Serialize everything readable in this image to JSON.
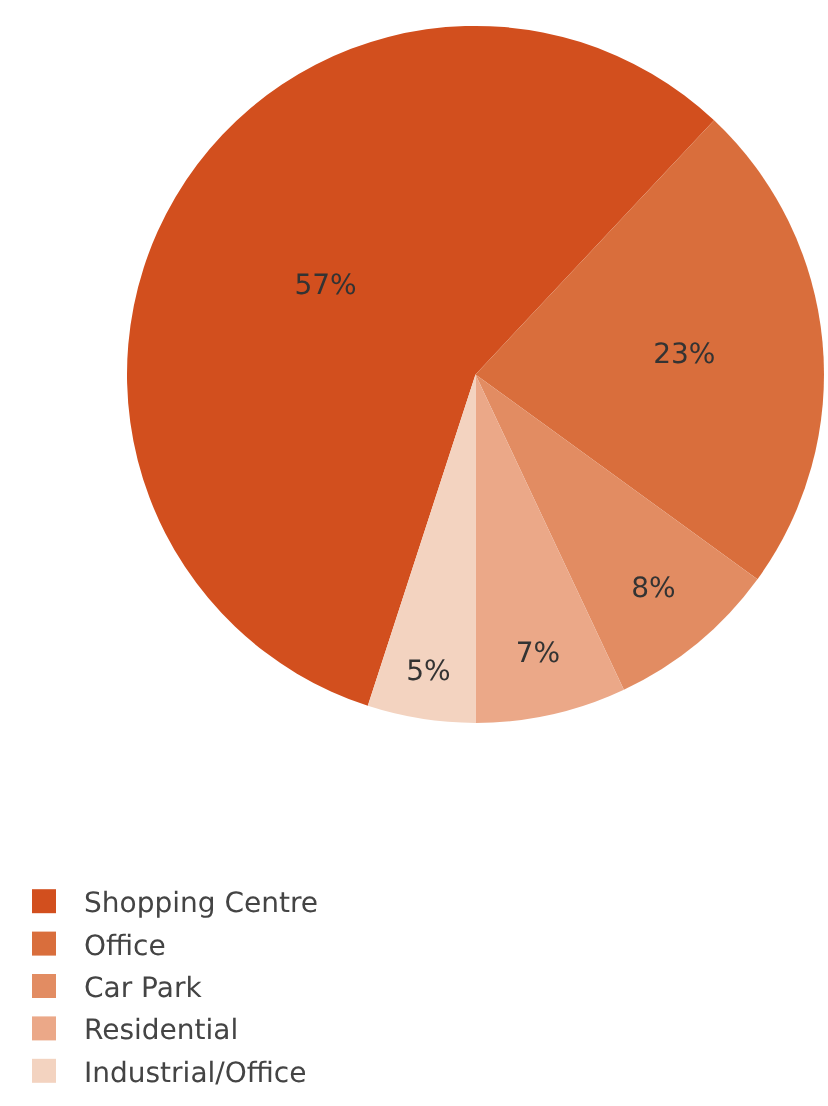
{
  "chart_data": {
    "type": "pie",
    "categories": [
      "Shopping Centre",
      "Office",
      "Car Park",
      "Residential",
      "Industrial/Office"
    ],
    "values": [
      57,
      23,
      8,
      7,
      5
    ],
    "value_labels": [
      "57%",
      "23%",
      "8%",
      "7%",
      "5%"
    ],
    "colors": [
      "#d24f1e",
      "#d96e3c",
      "#e28c62",
      "#eba888",
      "#f3d3c0"
    ],
    "legend": "bottom left"
  }
}
